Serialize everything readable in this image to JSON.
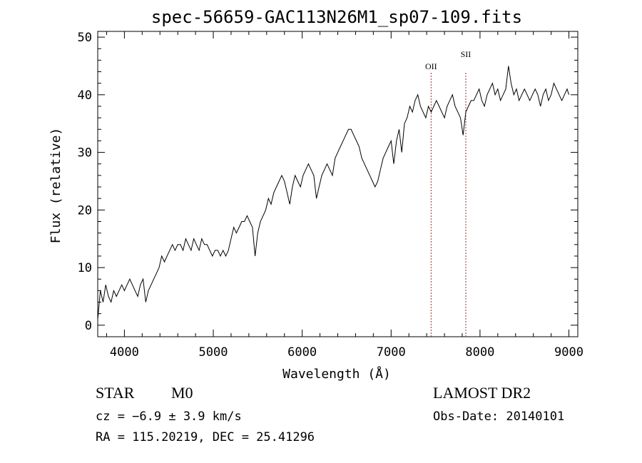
{
  "chart_data": {
    "type": "line",
    "title": "spec-56659-GAC113N26M1_sp07-109.fits",
    "xlabel": "Wavelength (Å)",
    "ylabel": "Flux (relative)",
    "xlim": [
      3700,
      9100
    ],
    "ylim": [
      -2,
      51
    ],
    "xticks": [
      4000,
      5000,
      6000,
      7000,
      8000,
      9000
    ],
    "yticks": [
      0,
      10,
      20,
      30,
      40,
      50
    ],
    "grid": false,
    "series": [
      {
        "x": [
          3700,
          3730,
          3760,
          3790,
          3820,
          3850,
          3880,
          3910,
          3940,
          3970,
          4000,
          4030,
          4060,
          4090,
          4120,
          4150,
          4180,
          4210,
          4240,
          4270,
          4300,
          4330,
          4360,
          4390,
          4420,
          4450,
          4480,
          4510,
          4540,
          4570,
          4600,
          4630,
          4660,
          4690,
          4720,
          4750,
          4780,
          4810,
          4840,
          4870,
          4900,
          4930,
          4960,
          4990,
          5020,
          5050,
          5080,
          5110,
          5140,
          5170,
          5200,
          5230,
          5260,
          5290,
          5320,
          5350,
          5380,
          5410,
          5440,
          5470,
          5500,
          5530,
          5560,
          5590,
          5620,
          5650,
          5680,
          5710,
          5740,
          5770,
          5800,
          5830,
          5860,
          5890,
          5920,
          5950,
          5980,
          6010,
          6040,
          6070,
          6100,
          6130,
          6160,
          6190,
          6220,
          6250,
          6280,
          6310,
          6340,
          6370,
          6400,
          6430,
          6460,
          6490,
          6520,
          6550,
          6580,
          6610,
          6640,
          6670,
          6700,
          6730,
          6760,
          6790,
          6820,
          6850,
          6880,
          6910,
          6940,
          6970,
          7000,
          7030,
          7060,
          7090,
          7120,
          7150,
          7180,
          7210,
          7240,
          7270,
          7300,
          7330,
          7360,
          7390,
          7420,
          7450,
          7480,
          7510,
          7540,
          7570,
          7600,
          7630,
          7660,
          7690,
          7720,
          7750,
          7780,
          7810,
          7840,
          7870,
          7900,
          7930,
          7960,
          7990,
          8020,
          8050,
          8080,
          8110,
          8140,
          8170,
          8200,
          8230,
          8260,
          8290,
          8320,
          8350,
          8380,
          8410,
          8440,
          8470,
          8500,
          8530,
          8560,
          8590,
          8620,
          8650,
          8680,
          8710,
          8740,
          8770,
          8800,
          8830,
          8860,
          8890,
          8920,
          8950,
          8980,
          9000
        ],
        "values": [
          1,
          6,
          4,
          7,
          5,
          4,
          6,
          5,
          6,
          7,
          6,
          7,
          8,
          7,
          6,
          5,
          7,
          8,
          4,
          6,
          7,
          8,
          9,
          10,
          12,
          11,
          12,
          13,
          14,
          13,
          14,
          14,
          13,
          15,
          14,
          13,
          15,
          14,
          13,
          15,
          14,
          14,
          13,
          12,
          13,
          13,
          12,
          13,
          12,
          13,
          15,
          17,
          16,
          17,
          18,
          18,
          19,
          18,
          17,
          12,
          16,
          18,
          19,
          20,
          22,
          21,
          23,
          24,
          25,
          26,
          25,
          23,
          21,
          24,
          26,
          25,
          24,
          26,
          27,
          28,
          27,
          26,
          22,
          24,
          26,
          27,
          28,
          27,
          26,
          29,
          30,
          31,
          32,
          33,
          34,
          34,
          33,
          32,
          31,
          29,
          28,
          27,
          26,
          25,
          24,
          25,
          27,
          29,
          30,
          31,
          32,
          28,
          32,
          34,
          30,
          35,
          36,
          38,
          37,
          39,
          40,
          38,
          37,
          36,
          38,
          37,
          38,
          39,
          38,
          37,
          36,
          38,
          39,
          40,
          38,
          37,
          36,
          33,
          37,
          38,
          39,
          39,
          40,
          41,
          39,
          38,
          40,
          41,
          42,
          40,
          41,
          39,
          40,
          41,
          45,
          42,
          40,
          41,
          39,
          40,
          41,
          40,
          39,
          40,
          41,
          40,
          38,
          40,
          41,
          39,
          40,
          42,
          41,
          40,
          39,
          40,
          41,
          40
        ]
      }
    ],
    "annotations": [
      {
        "label": "OII",
        "x": 7450
      },
      {
        "label": "SII",
        "x": 7840
      }
    ],
    "line_color": "#000000",
    "marker_color": "#b22222"
  },
  "info": {
    "object_class": "STAR",
    "subclass": "M0",
    "cz": "cz = −6.9 ± 3.9 km/s",
    "coords": "RA = 115.20219, DEC =  25.41296",
    "survey": "LAMOST DR2",
    "obs_date": "Obs-Date: 20140101"
  }
}
